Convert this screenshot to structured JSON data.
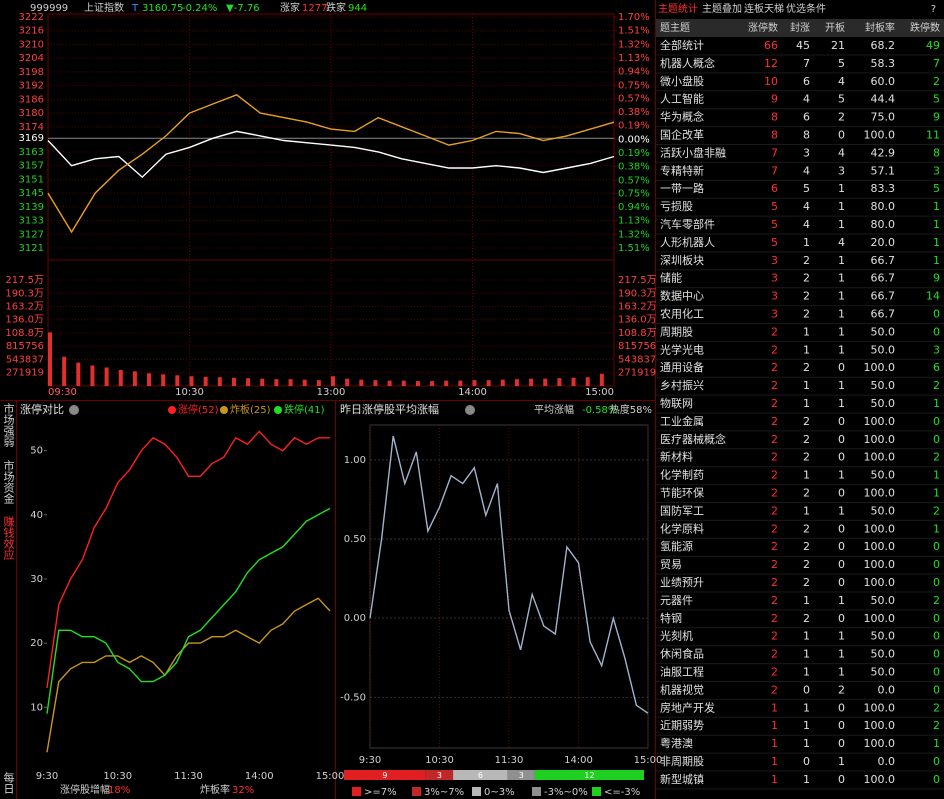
{
  "header": {
    "code": "999999",
    "name": "上证指数",
    "flag": "T",
    "price": "3160.75",
    "change_pct": "-0.24%",
    "change": "▼-7.76",
    "up_label": "涨家",
    "up_count": "1277",
    "down_label": "跌家",
    "down_count": "944"
  },
  "side_tabs": [
    "市场强弱",
    "市场资金",
    "赚钱效应",
    "每日"
  ],
  "chart_data": [
    {
      "type": "line",
      "x": [
        0,
        10,
        20,
        30,
        40,
        50,
        60,
        70,
        80,
        90,
        100,
        110,
        120,
        130,
        140,
        150,
        160,
        170,
        180,
        190,
        200,
        210,
        220,
        230,
        240
      ],
      "xlim": [
        0,
        240
      ],
      "xticks": [
        {
          "value": 0,
          "label": "09:30"
        },
        {
          "value": 60,
          "label": "10:30"
        },
        {
          "value": 120,
          "label": "13:00"
        },
        {
          "value": 180,
          "label": "14:00"
        },
        {
          "value": 240,
          "label": "15:00"
        }
      ],
      "ylim": [
        3121,
        3222
      ],
      "yticks": [
        3222,
        3216,
        3210,
        3204,
        3198,
        3192,
        3186,
        3180,
        3174,
        3169,
        3163,
        3157,
        3151,
        3145,
        3139,
        3133,
        3127,
        3121
      ],
      "y2lim": [
        -1.51,
        1.7
      ],
      "y2ticks": [
        {
          "value": 1.7,
          "label": "1.70%"
        },
        {
          "value": 1.51,
          "label": "1.51%"
        },
        {
          "value": 1.32,
          "label": "1.32%"
        },
        {
          "value": 1.13,
          "label": "1.13%"
        },
        {
          "value": 0.94,
          "label": "0.94%"
        },
        {
          "value": 0.75,
          "label": "0.75%"
        },
        {
          "value": 0.57,
          "label": "0.57%"
        },
        {
          "value": 0.38,
          "label": "0.38%"
        },
        {
          "value": 0.19,
          "label": "0.19%"
        },
        {
          "value": 0,
          "label": "0.00%"
        },
        {
          "value": -0.19,
          "label": "0.19%"
        },
        {
          "value": -0.38,
          "label": "0.38%"
        },
        {
          "value": -0.57,
          "label": "0.57%"
        },
        {
          "value": -0.75,
          "label": "0.75%"
        },
        {
          "value": -0.94,
          "label": "0.94%"
        },
        {
          "value": -1.13,
          "label": "1.13%"
        },
        {
          "value": -1.32,
          "label": "1.32%"
        },
        {
          "value": -1.51,
          "label": "1.51%"
        }
      ],
      "series": [
        {
          "color": "#ffffff",
          "values": [
            3168,
            3157,
            3160,
            3161,
            3152,
            3162,
            3165,
            3169,
            3172,
            3170,
            3168,
            3167,
            3166,
            3165,
            3163,
            3160,
            3158,
            3156,
            3156,
            3157,
            3156,
            3154,
            3156,
            3158,
            3161
          ]
        },
        {
          "color": "#e8a020",
          "values": [
            3145,
            3128,
            3145,
            3155,
            3162,
            3170,
            3180,
            3184,
            3188,
            3180,
            3178,
            3176,
            3173,
            3172,
            3178,
            3174,
            3170,
            3166,
            3168,
            3172,
            3171,
            3168,
            3170,
            3173,
            3176
          ]
        }
      ]
    },
    {
      "type": "bar",
      "x": [
        0,
        6,
        12,
        18,
        24,
        30,
        36,
        42,
        48,
        54,
        60,
        66,
        72,
        78,
        84,
        90,
        96,
        102,
        108,
        114,
        120,
        126,
        132,
        138,
        144,
        150,
        156,
        162,
        168,
        174,
        180,
        186,
        192,
        198,
        204,
        210,
        216,
        222,
        228,
        234
      ],
      "xlim": [
        0,
        240
      ],
      "ylim": [
        0,
        2175000
      ],
      "yticks": [
        {
          "value": 2175000,
          "label": "217.5万"
        },
        {
          "value": 1903000,
          "label": "190.3万"
        },
        {
          "value": 1632000,
          "label": "163.2万"
        },
        {
          "value": 1360000,
          "label": "136.0万"
        },
        {
          "value": 1088000,
          "label": "108.8万"
        },
        815756,
        543837,
        271919
      ],
      "color": "#e0302b",
      "values": [
        1100000,
        600000,
        480000,
        420000,
        380000,
        330000,
        300000,
        260000,
        240000,
        220000,
        200000,
        190000,
        180000,
        170000,
        160000,
        150000,
        140000,
        140000,
        130000,
        120000,
        200000,
        150000,
        130000,
        120000,
        110000,
        110000,
        100000,
        100000,
        110000,
        110000,
        120000,
        120000,
        130000,
        140000,
        150000,
        150000,
        160000,
        170000,
        180000,
        250000
      ]
    },
    {
      "type": "line",
      "title": "涨停对比",
      "x": [
        0,
        10,
        20,
        30,
        40,
        50,
        60,
        70,
        80,
        90,
        100,
        110,
        120,
        130,
        140,
        150,
        160,
        170,
        180,
        190,
        200,
        210,
        220,
        230,
        240
      ],
      "xlim": [
        0,
        240
      ],
      "xticks": [
        {
          "value": 0,
          "label": "9:30"
        },
        {
          "value": 60,
          "label": "10:30"
        },
        {
          "value": 120,
          "label": "11:30"
        },
        {
          "value": 180,
          "label": "14:00"
        },
        {
          "value": 240,
          "label": "15:00"
        }
      ],
      "ylim": [
        1,
        54
      ],
      "yticks": [
        10,
        20,
        30,
        40,
        50
      ],
      "series": [
        {
          "name": "涨停(52)",
          "color": "#ff2020",
          "values": [
            13,
            26,
            30,
            33,
            38,
            41,
            45,
            47,
            50,
            52,
            51,
            49,
            46,
            46,
            48,
            49,
            52,
            51,
            53,
            51,
            50,
            52,
            51,
            52,
            52
          ]
        },
        {
          "name": "炸板(25)",
          "color": "#c8961e",
          "values": [
            3,
            14,
            16,
            17,
            17,
            18,
            18,
            17,
            18,
            17,
            15,
            18,
            20,
            20,
            21,
            21,
            22,
            21,
            20,
            22,
            23,
            25,
            26,
            27,
            25
          ]
        },
        {
          "name": "跌停(41)",
          "color": "#20e020",
          "values": [
            9,
            22,
            22,
            21,
            21,
            20,
            17,
            16,
            14,
            14,
            15,
            17,
            21,
            22,
            24,
            26,
            28,
            31,
            33,
            34,
            35,
            37,
            39,
            40,
            41
          ]
        }
      ],
      "notes": [
        {
          "label": "涨停股增幅",
          "value": "18%"
        },
        {
          "label": "炸板率",
          "value": "32%"
        }
      ]
    },
    {
      "type": "line",
      "title": "昨日涨停股平均涨幅",
      "x": [
        0,
        10,
        20,
        30,
        40,
        50,
        60,
        70,
        80,
        90,
        100,
        110,
        120,
        130,
        140,
        150,
        160,
        170,
        180,
        190,
        200,
        210,
        220,
        230,
        240
      ],
      "xlim": [
        0,
        240
      ],
      "xticks": [
        {
          "value": 0,
          "label": "9:30"
        },
        {
          "value": 60,
          "label": "10:30"
        },
        {
          "value": 120,
          "label": "11:30"
        },
        {
          "value": 180,
          "label": "14:00"
        },
        {
          "value": 240,
          "label": "15:00"
        }
      ],
      "ylim": [
        -0.82,
        1.22
      ],
      "yticks": [
        {
          "value": 1,
          "label": "1.00"
        },
        {
          "value": 0.5,
          "label": "0.50"
        },
        {
          "value": 0,
          "label": "0.00"
        },
        {
          "value": -0.5,
          "label": "-0.50"
        }
      ],
      "series": [
        {
          "color": "#9fb4cc",
          "values": [
            0,
            0.5,
            1.15,
            0.85,
            1.05,
            0.55,
            0.7,
            0.9,
            0.85,
            0.95,
            0.65,
            0.85,
            0.05,
            -0.2,
            0.15,
            -0.05,
            -0.1,
            0.45,
            0.35,
            -0.15,
            -0.3,
            0,
            -0.25,
            -0.55,
            -0.6
          ]
        }
      ],
      "stats": {
        "avg_label": "平均涨幅",
        "avg_value": "-0.58%",
        "heat": "热度58%"
      },
      "distribution": {
        "categories": [
          ">=7%",
          "3%~7%",
          "0~3%",
          "-3%~0%",
          "<=-3%"
        ],
        "values": [
          9,
          3,
          6,
          3,
          12
        ],
        "colors": [
          "#e02020",
          "#c02828",
          "#b8b8b8",
          "#909090",
          "#20d020"
        ]
      }
    }
  ],
  "table": {
    "tabs": [
      "主题统计",
      "主题叠加",
      "连板天梯",
      "优选条件",
      "?"
    ],
    "columns": [
      "题主题",
      "涨停数",
      "封涨",
      "开板",
      "封板率",
      "跌停数"
    ],
    "rows": [
      [
        "全部统计",
        "66",
        "45",
        "21",
        "68.2",
        "49"
      ],
      [
        "机器人概念",
        "12",
        "7",
        "5",
        "58.3",
        "7"
      ],
      [
        "微小盘股",
        "10",
        "6",
        "4",
        "60.0",
        "2"
      ],
      [
        "人工智能",
        "9",
        "4",
        "5",
        "44.4",
        "5"
      ],
      [
        "华为概念",
        "8",
        "6",
        "2",
        "75.0",
        "9"
      ],
      [
        "国企改革",
        "8",
        "8",
        "0",
        "100.0",
        "11"
      ],
      [
        "活跃小盘非融",
        "7",
        "3",
        "4",
        "42.9",
        "8"
      ],
      [
        "专精特新",
        "7",
        "4",
        "3",
        "57.1",
        "3"
      ],
      [
        "一带一路",
        "6",
        "5",
        "1",
        "83.3",
        "5"
      ],
      [
        "亏损股",
        "5",
        "4",
        "1",
        "80.0",
        "1"
      ],
      [
        "汽车零部件",
        "5",
        "4",
        "1",
        "80.0",
        "1"
      ],
      [
        "人形机器人",
        "5",
        "1",
        "4",
        "20.0",
        "1"
      ],
      [
        "深圳板块",
        "3",
        "2",
        "1",
        "66.7",
        "1"
      ],
      [
        "储能",
        "3",
        "2",
        "1",
        "66.7",
        "9"
      ],
      [
        "数据中心",
        "3",
        "2",
        "1",
        "66.7",
        "14"
      ],
      [
        "农用化工",
        "3",
        "2",
        "1",
        "66.7",
        "0"
      ],
      [
        "周期股",
        "2",
        "1",
        "1",
        "50.0",
        "0"
      ],
      [
        "光学光电",
        "2",
        "1",
        "1",
        "50.0",
        "3"
      ],
      [
        "通用设备",
        "2",
        "2",
        "0",
        "100.0",
        "6"
      ],
      [
        "乡村振兴",
        "2",
        "1",
        "1",
        "50.0",
        "2"
      ],
      [
        "物联网",
        "2",
        "1",
        "1",
        "50.0",
        "1"
      ],
      [
        "工业金属",
        "2",
        "2",
        "0",
        "100.0",
        "0"
      ],
      [
        "医疗器械概念",
        "2",
        "2",
        "0",
        "100.0",
        "0"
      ],
      [
        "新材料",
        "2",
        "2",
        "0",
        "100.0",
        "2"
      ],
      [
        "化学制药",
        "2",
        "1",
        "1",
        "50.0",
        "1"
      ],
      [
        "节能环保",
        "2",
        "2",
        "0",
        "100.0",
        "1"
      ],
      [
        "国防军工",
        "2",
        "1",
        "1",
        "50.0",
        "2"
      ],
      [
        "化学原料",
        "2",
        "2",
        "0",
        "100.0",
        "1"
      ],
      [
        "氢能源",
        "2",
        "2",
        "0",
        "100.0",
        "0"
      ],
      [
        "贸易",
        "2",
        "2",
        "0",
        "100.0",
        "0"
      ],
      [
        "业绩预升",
        "2",
        "2",
        "0",
        "100.0",
        "0"
      ],
      [
        "元器件",
        "2",
        "1",
        "1",
        "50.0",
        "2"
      ],
      [
        "特钢",
        "2",
        "2",
        "0",
        "100.0",
        "0"
      ],
      [
        "光刻机",
        "2",
        "1",
        "1",
        "50.0",
        "0"
      ],
      [
        "休闲食品",
        "2",
        "1",
        "1",
        "50.0",
        "0"
      ],
      [
        "油服工程",
        "2",
        "1",
        "1",
        "50.0",
        "0"
      ],
      [
        "机器视觉",
        "2",
        "0",
        "2",
        "0.0",
        "0"
      ],
      [
        "房地产开发",
        "1",
        "1",
        "0",
        "100.0",
        "2"
      ],
      [
        "近期弱势",
        "1",
        "1",
        "0",
        "100.0",
        "2"
      ],
      [
        "粤港澳",
        "1",
        "1",
        "0",
        "100.0",
        "1"
      ],
      [
        "非周期股",
        "1",
        "0",
        "1",
        "0.0",
        "0"
      ],
      [
        "新型城镇",
        "1",
        "1",
        "0",
        "100.0",
        "0"
      ]
    ]
  }
}
